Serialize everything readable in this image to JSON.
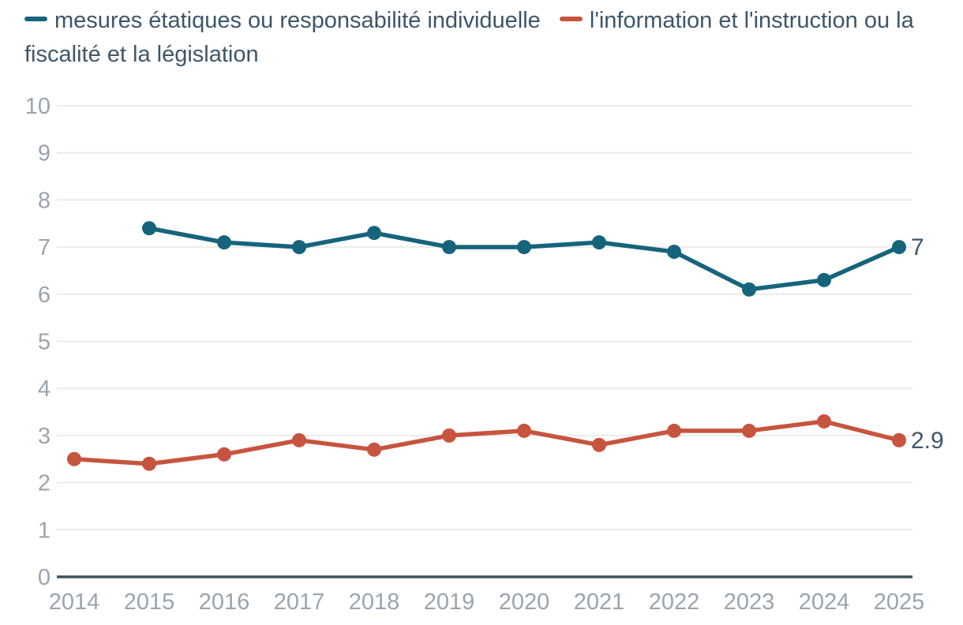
{
  "chart_data": {
    "type": "line",
    "x": [
      "2014",
      "2015",
      "2016",
      "2017",
      "2018",
      "2019",
      "2020",
      "2021",
      "2022",
      "2023",
      "2024",
      "2025"
    ],
    "series": [
      {
        "name": "mesures étatiques ou responsabilité individuelle",
        "color": "#15647b",
        "values": [
          null,
          7.4,
          7.1,
          7.0,
          7.3,
          7.0,
          7.0,
          7.1,
          6.9,
          6.1,
          6.3,
          7.0
        ],
        "end_label": "7"
      },
      {
        "name": "l'information et l'instruction ou la fiscalité et la législation",
        "color": "#c7543f",
        "values": [
          2.5,
          2.4,
          2.6,
          2.9,
          2.7,
          3.0,
          3.1,
          2.8,
          3.1,
          3.1,
          3.3,
          2.9
        ],
        "end_label": "2.9"
      }
    ],
    "title": "",
    "xlabel": "",
    "ylabel": "",
    "ylim": [
      0,
      10
    ],
    "yticks": [
      0,
      1,
      2,
      3,
      4,
      5,
      6,
      7,
      8,
      9,
      10
    ],
    "grid": true,
    "legend_position": "top"
  },
  "colors": {
    "series_1": "#15647b",
    "series_2": "#c7543f",
    "value_label_text": "#3d566a",
    "axis_tick_text": "#9aa4ad",
    "gridline": "#ebebeb",
    "baseline": "#3e515d",
    "background": "#ffffff"
  }
}
